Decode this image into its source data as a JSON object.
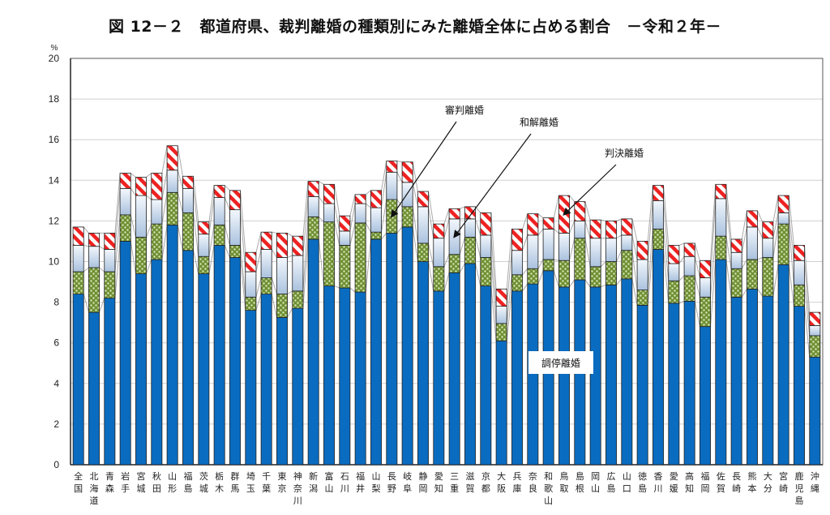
{
  "chart_data": {
    "type": "bar",
    "stacked": true,
    "title": "図 12－２　都道府県、裁判離婚の種類別にみた離婚全体に占める割合　－令和２年－",
    "ylabel": "%",
    "xlabel": "",
    "ylim": [
      0,
      20
    ],
    "yticks": [
      0,
      2,
      4,
      6,
      8,
      10,
      12,
      14,
      16,
      18,
      20
    ],
    "grid": true,
    "categories": [
      "全国",
      "北海道",
      "青森",
      "岩手",
      "宮城",
      "秋田",
      "山形",
      "福島",
      "茨城",
      "栃木",
      "群馬",
      "埼玉",
      "千葉",
      "東京",
      "神奈川",
      "新潟",
      "富山",
      "石川",
      "福井",
      "山梨",
      "長野",
      "岐阜",
      "静岡",
      "愛知",
      "三重",
      "滋賀",
      "京都",
      "大阪",
      "兵庫",
      "奈良",
      "和歌山",
      "鳥取",
      "島根",
      "岡山",
      "広島",
      "山口",
      "徳島",
      "香川",
      "愛媛",
      "高知",
      "福岡",
      "佐賀",
      "長崎",
      "熊本",
      "大分",
      "宮崎",
      "鹿児島",
      "沖縄"
    ],
    "series": [
      {
        "name": "調停離婚",
        "color": "#0a6cc0",
        "values": [
          8.4,
          7.5,
          8.2,
          11.0,
          9.4,
          10.1,
          11.8,
          10.55,
          9.4,
          10.8,
          10.2,
          7.6,
          8.4,
          7.25,
          7.7,
          11.1,
          8.8,
          8.7,
          8.5,
          11.1,
          11.4,
          11.7,
          10.0,
          8.55,
          9.45,
          9.9,
          8.8,
          6.1,
          8.55,
          8.9,
          9.55,
          8.75,
          9.1,
          8.75,
          8.85,
          9.15,
          7.85,
          10.6,
          7.95,
          8.05,
          6.8,
          10.1,
          8.25,
          8.65,
          8.3,
          9.85,
          7.8,
          5.3
        ]
      },
      {
        "name": "審判離婚",
        "color": "#7a9a3a",
        "values": [
          1.1,
          2.2,
          1.3,
          1.3,
          1.8,
          1.75,
          1.6,
          1.85,
          0.85,
          1.0,
          0.6,
          0.65,
          0.8,
          1.15,
          0.85,
          1.1,
          3.15,
          2.1,
          3.4,
          0.35,
          1.65,
          1.0,
          0.9,
          1.2,
          0.9,
          1.3,
          1.4,
          0.85,
          0.8,
          0.75,
          0.55,
          1.3,
          2.05,
          1.0,
          1.15,
          1.4,
          0.75,
          1.0,
          1.1,
          1.25,
          1.45,
          1.15,
          1.4,
          1.45,
          1.9,
          2.0,
          1.05,
          1.05
        ]
      },
      {
        "name": "和解離婚",
        "color": "#c8d8ec",
        "values": [
          1.3,
          1.05,
          1.1,
          1.3,
          2.05,
          1.2,
          1.1,
          1.2,
          1.1,
          1.35,
          1.75,
          1.25,
          1.4,
          1.8,
          1.75,
          1.0,
          0.9,
          0.7,
          0.95,
          1.2,
          1.35,
          1.2,
          1.8,
          1.4,
          1.75,
          0.9,
          1.1,
          0.85,
          1.2,
          1.65,
          1.5,
          1.35,
          0.85,
          1.4,
          1.15,
          0.75,
          1.5,
          1.4,
          0.85,
          0.95,
          0.95,
          1.85,
          0.8,
          1.6,
          0.95,
          0.55,
          1.2,
          0.5
        ]
      },
      {
        "name": "判決離婚",
        "color": "#ee2222",
        "values": [
          0.9,
          0.65,
          0.8,
          0.75,
          0.9,
          1.3,
          1.2,
          0.6,
          0.6,
          0.6,
          0.95,
          0.95,
          0.85,
          1.2,
          0.95,
          0.75,
          0.95,
          0.75,
          0.45,
          0.85,
          0.55,
          1.0,
          0.75,
          0.7,
          0.5,
          0.6,
          1.1,
          0.85,
          1.05,
          1.05,
          0.55,
          1.85,
          0.95,
          0.9,
          0.85,
          0.8,
          0.9,
          0.75,
          0.9,
          0.65,
          0.85,
          0.7,
          0.65,
          0.8,
          0.8,
          0.85,
          0.75,
          0.65
        ]
      }
    ],
    "annotations": [
      {
        "text": "審判離婚",
        "target": "長野",
        "series": "審判離婚"
      },
      {
        "text": "和解離婚",
        "target": "三重",
        "series": "和解離婚"
      },
      {
        "text": "判決離婚",
        "target": "鳥取",
        "series": "判決離婚"
      },
      {
        "text": "調停離婚",
        "series": "調停離婚"
      }
    ]
  }
}
